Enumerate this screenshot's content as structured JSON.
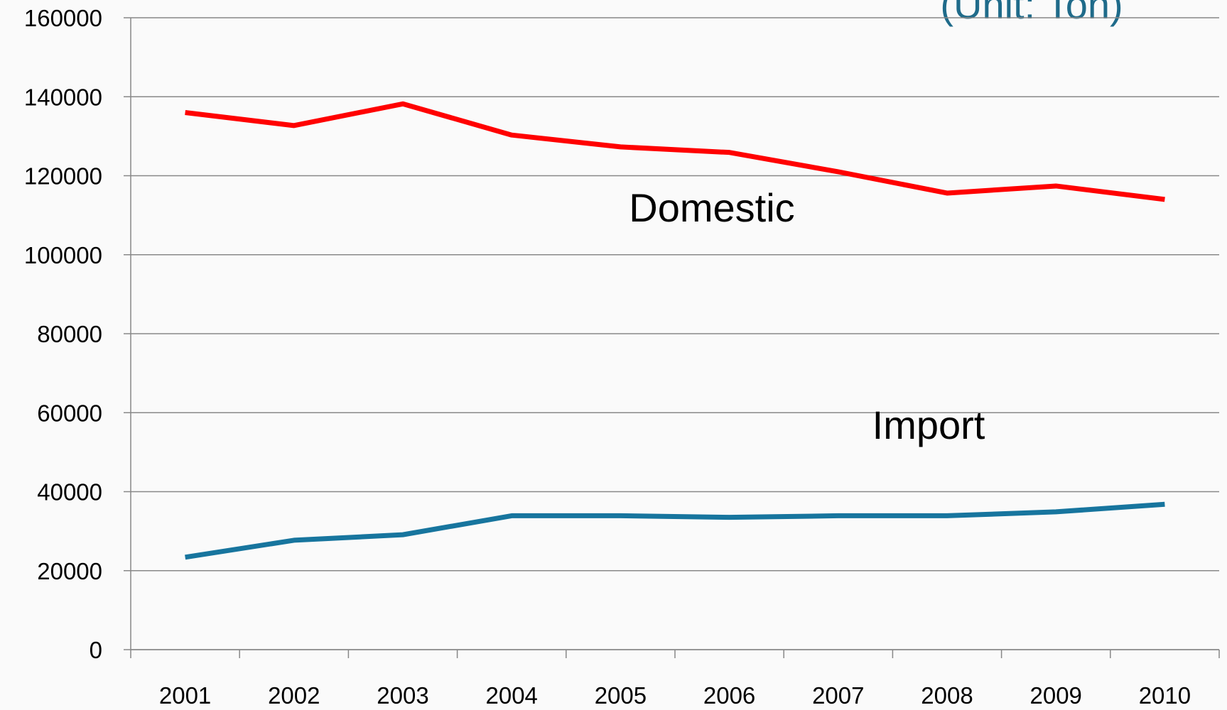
{
  "chart_data": {
    "type": "line",
    "unit_note": "(Unit: Ton)",
    "categories": [
      "2001",
      "2002",
      "2003",
      "2004",
      "2005",
      "2006",
      "2007",
      "2008",
      "2009",
      "2010"
    ],
    "series": [
      {
        "name": "Domestic",
        "color": "#ff0000",
        "values": [
          136000,
          132700,
          138200,
          130300,
          127300,
          125900,
          121000,
          115600,
          117400,
          114000
        ]
      },
      {
        "name": "Import",
        "color": "#17759e",
        "values": [
          23400,
          27700,
          29100,
          33900,
          33900,
          33500,
          33900,
          33900,
          34900,
          36800
        ]
      }
    ],
    "ylim": [
      0,
      160000
    ],
    "yticks": [
      0,
      20000,
      40000,
      60000,
      80000,
      100000,
      120000,
      140000,
      160000
    ],
    "grid": true
  }
}
